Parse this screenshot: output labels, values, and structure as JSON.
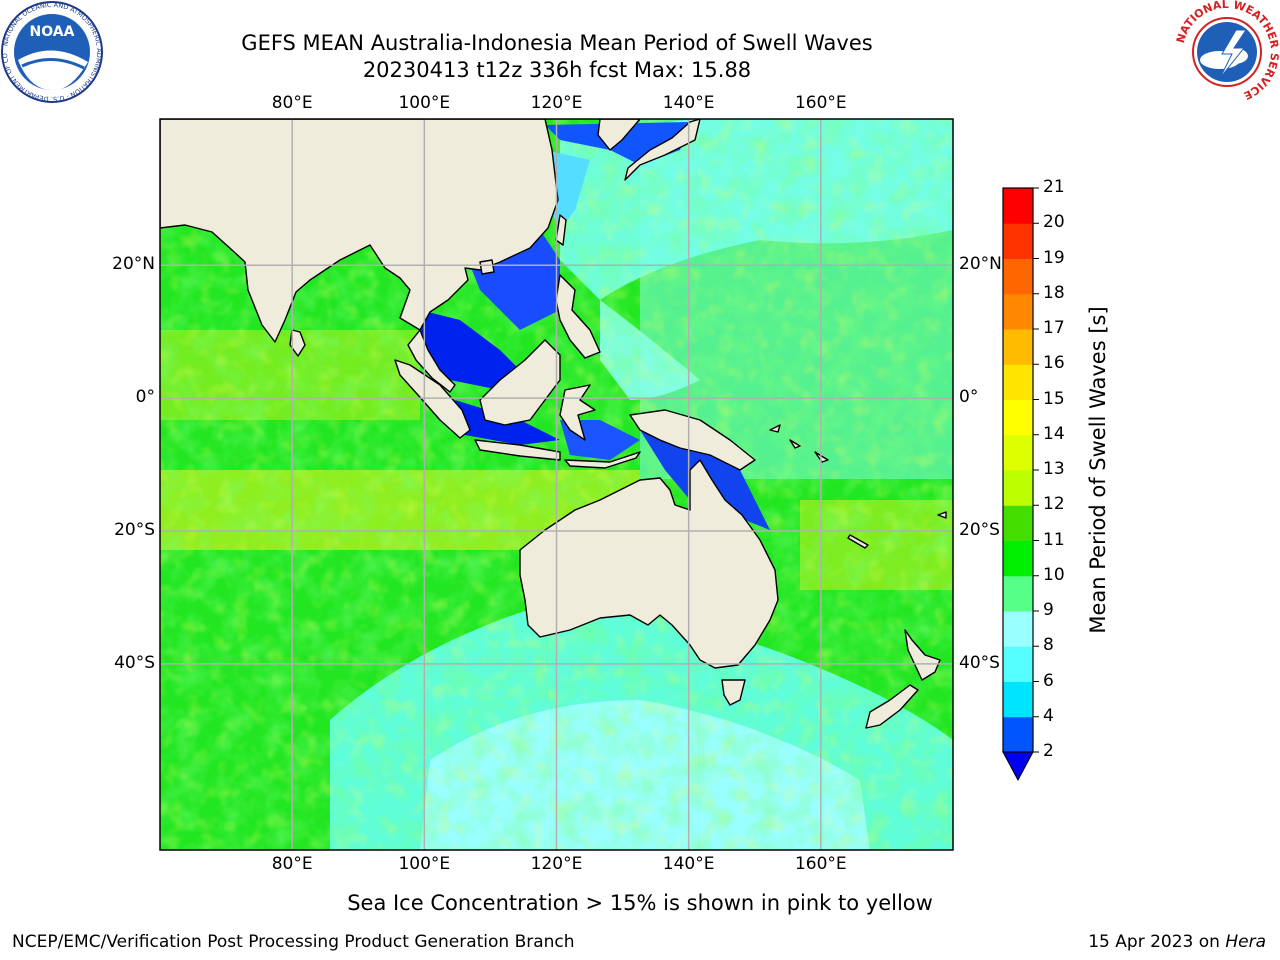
{
  "header": {
    "title_line1": "GEFS MEAN Australia-Indonesia Mean Period of Swell Waves",
    "title_line2": "20230413 t12z 336h fcst   Max: 15.88"
  },
  "logos": {
    "noaa_text": "NOAA",
    "noaa_ring": "NATIONAL OCEANIC AND ATMOSPHERIC ADMINISTRATION · U.S. DEPARTMENT OF COMMERCE",
    "nws_ring": "NATIONAL WEATHER SERVICE"
  },
  "map": {
    "lon_labels": [
      "80°E",
      "100°E",
      "120°E",
      "140°E",
      "160°E"
    ],
    "lat_labels": [
      "20°N",
      "0°",
      "20°S",
      "40°S"
    ],
    "lon_values": [
      80,
      100,
      120,
      140,
      160
    ],
    "lat_values": [
      20,
      0,
      -20,
      -40
    ],
    "extent": {
      "lon_min": 60,
      "lon_max": 180,
      "lat_min": -68,
      "lat_max": 42
    },
    "colors": {
      "land": "#efecdc",
      "grid": "#b0b0b0",
      "coast": "#000000"
    }
  },
  "colorbar": {
    "label": "Mean Period of Swell Waves [s]",
    "ticks": [
      "2",
      "4",
      "6",
      "8",
      "9",
      "10",
      "11",
      "12",
      "13",
      "14",
      "15",
      "16",
      "17",
      "18",
      "19",
      "20",
      "21"
    ],
    "colors": [
      "#0055ff",
      "#00e5ff",
      "#55ffff",
      "#99ffff",
      "#55ff88",
      "#00ee00",
      "#44dd00",
      "#bbff00",
      "#ddff00",
      "#ffff00",
      "#ffe400",
      "#ffbb00",
      "#ff8800",
      "#ff6600",
      "#ff3300",
      "#ff0000"
    ],
    "under_color": "#0000ee"
  },
  "footer": {
    "note": "Sea Ice Concentration > 15% is shown in pink to yellow",
    "left": "NCEP/EMC/Verification Post Processing Product Generation Branch",
    "date": "15 Apr 2023 on ",
    "host": "Hera"
  }
}
